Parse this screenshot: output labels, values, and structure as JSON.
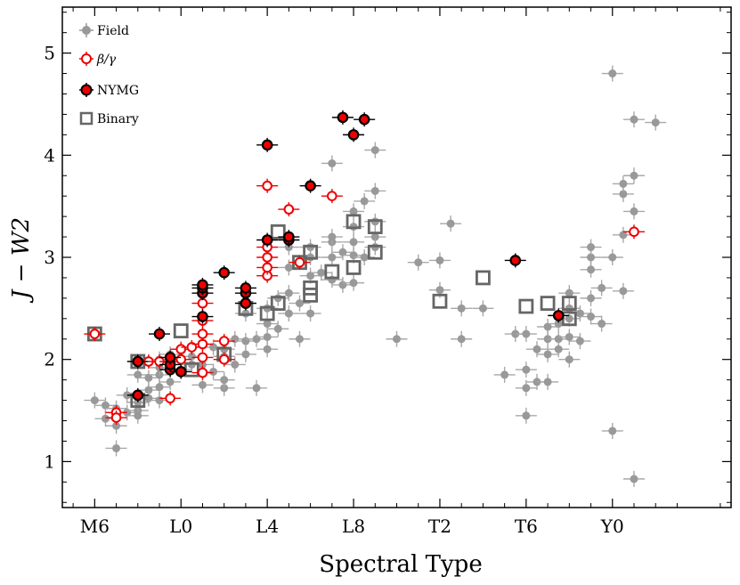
{
  "chart_data": {
    "type": "scatter",
    "title": "",
    "xlabel": "Spectral Type",
    "ylabel": "J − W2",
    "xlim": [
      -1.5,
      29.5
    ],
    "ylim": [
      0.55,
      5.45
    ],
    "x_ticks": [
      {
        "value": 0,
        "label": "M6"
      },
      {
        "value": 4,
        "label": "L0"
      },
      {
        "value": 8,
        "label": "L4"
      },
      {
        "value": 12,
        "label": "L8"
      },
      {
        "value": 16,
        "label": "T2"
      },
      {
        "value": 20,
        "label": "T6"
      },
      {
        "value": 24,
        "label": "Y0"
      }
    ],
    "y_ticks": [
      {
        "value": 1,
        "label": "1"
      },
      {
        "value": 2,
        "label": "2"
      },
      {
        "value": 3,
        "label": "3"
      },
      {
        "value": 4,
        "label": "4"
      },
      {
        "value": 5,
        "label": "5"
      }
    ],
    "legend": [
      {
        "name": "Field",
        "label": "Field",
        "color": "#999999"
      },
      {
        "name": "beta-gamma",
        "label": "β/γ",
        "color": "#ee0000"
      },
      {
        "name": "NYMG",
        "label": "NYMG",
        "color": "#000000"
      },
      {
        "name": "Binary",
        "label": "Binary",
        "color": "#666666"
      }
    ],
    "series": [
      {
        "name": "Field",
        "style": "field",
        "color": "#999999",
        "points": [
          [
            0,
            1.6
          ],
          [
            0.5,
            1.55
          ],
          [
            0.5,
            1.42
          ],
          [
            1,
            1.52
          ],
          [
            1,
            1.13
          ],
          [
            1,
            1.35
          ],
          [
            1.5,
            1.48
          ],
          [
            1.5,
            1.65
          ],
          [
            2,
            1.5
          ],
          [
            2,
            1.58
          ],
          [
            2,
            1.45
          ],
          [
            2,
            1.85
          ],
          [
            2.5,
            1.7
          ],
          [
            2.5,
            1.82
          ],
          [
            2.5,
            1.62
          ],
          [
            3,
            1.6
          ],
          [
            3,
            1.73
          ],
          [
            3,
            1.85
          ],
          [
            3,
            2.0
          ],
          [
            3,
            1.92
          ],
          [
            3.5,
            1.9
          ],
          [
            3.5,
            2.05
          ],
          [
            3.5,
            1.78
          ],
          [
            4,
            2.0
          ],
          [
            4,
            2.1
          ],
          [
            4,
            1.9
          ],
          [
            4.5,
            2.03
          ],
          [
            4.5,
            1.95
          ],
          [
            5,
            1.95
          ],
          [
            5,
            1.75
          ],
          [
            5.5,
            2.12
          ],
          [
            5.5,
            1.88
          ],
          [
            6,
            1.72
          ],
          [
            6,
            1.8
          ],
          [
            6,
            2.03
          ],
          [
            6,
            2.1
          ],
          [
            6.5,
            1.95
          ],
          [
            6.5,
            2.2
          ],
          [
            7,
            2.18
          ],
          [
            7,
            2.05
          ],
          [
            7,
            2.45
          ],
          [
            7,
            2.55
          ],
          [
            7.5,
            2.2
          ],
          [
            7.5,
            1.72
          ],
          [
            8,
            2.22
          ],
          [
            8,
            2.35
          ],
          [
            8,
            2.5
          ],
          [
            8,
            2.1
          ],
          [
            8.5,
            2.3
          ],
          [
            8.5,
            2.6
          ],
          [
            9,
            2.65
          ],
          [
            9,
            2.9
          ],
          [
            9,
            3.1
          ],
          [
            9,
            2.45
          ],
          [
            9.5,
            2.55
          ],
          [
            9.5,
            2.2
          ],
          [
            10,
            2.82
          ],
          [
            10,
            3.1
          ],
          [
            10,
            3.0
          ],
          [
            10,
            2.45
          ],
          [
            10.5,
            2.85
          ],
          [
            11,
            3.15
          ],
          [
            11,
            3.2
          ],
          [
            11,
            3.0
          ],
          [
            11,
            2.78
          ],
          [
            11,
            3.92
          ],
          [
            11.5,
            2.73
          ],
          [
            11.5,
            3.05
          ],
          [
            12,
            2.75
          ],
          [
            12,
            3.02
          ],
          [
            12,
            3.45
          ],
          [
            12,
            3.3
          ],
          [
            12,
            3.15
          ],
          [
            12.5,
            3.55
          ],
          [
            12.5,
            3.0
          ],
          [
            13,
            3.35
          ],
          [
            13,
            3.65
          ],
          [
            13,
            3.2
          ],
          [
            13,
            3.1
          ],
          [
            13,
            4.05
          ],
          [
            15,
            2.95
          ],
          [
            16,
            2.97
          ],
          [
            16,
            2.68
          ],
          [
            16.5,
            3.33
          ],
          [
            17,
            2.5
          ],
          [
            17,
            2.2
          ],
          [
            18,
            2.5
          ],
          [
            19,
            1.85
          ],
          [
            19.5,
            2.25
          ],
          [
            20,
            1.9
          ],
          [
            20,
            1.72
          ],
          [
            20,
            1.45
          ],
          [
            20,
            2.25
          ],
          [
            20.5,
            1.78
          ],
          [
            20.5,
            2.1
          ],
          [
            21,
            2.2
          ],
          [
            21,
            2.32
          ],
          [
            21,
            2.05
          ],
          [
            21,
            1.78
          ],
          [
            21.5,
            2.2
          ],
          [
            21.5,
            2.1
          ],
          [
            21.5,
            2.35
          ],
          [
            22,
            2.22
          ],
          [
            22,
            2.4
          ],
          [
            22,
            2.0
          ],
          [
            22,
            2.5
          ],
          [
            22,
            2.65
          ],
          [
            22.5,
            2.18
          ],
          [
            22.5,
            2.45
          ],
          [
            23,
            2.42
          ],
          [
            23,
            2.6
          ],
          [
            23,
            2.88
          ],
          [
            23,
            3.0
          ],
          [
            23,
            3.1
          ],
          [
            23.5,
            2.35
          ],
          [
            23.5,
            2.7
          ],
          [
            24,
            1.3
          ],
          [
            24,
            3.0
          ],
          [
            24,
            4.8
          ],
          [
            24.5,
            2.67
          ],
          [
            24.5,
            3.22
          ],
          [
            24.5,
            3.62
          ],
          [
            24.5,
            3.72
          ],
          [
            25,
            4.35
          ],
          [
            25,
            3.8
          ],
          [
            25,
            0.83
          ],
          [
            25,
            3.45
          ],
          [
            26,
            4.32
          ],
          [
            14,
            2.2
          ]
        ]
      },
      {
        "name": "Binary",
        "style": "binary",
        "color": "#666666",
        "points": [
          [
            0,
            2.25
          ],
          [
            2,
            1.98
          ],
          [
            2,
            1.6
          ],
          [
            4,
            2.28
          ],
          [
            4.5,
            1.9
          ],
          [
            6,
            2.05
          ],
          [
            7,
            2.5
          ],
          [
            8,
            2.45
          ],
          [
            8.5,
            2.55
          ],
          [
            8.5,
            3.25
          ],
          [
            9.5,
            2.95
          ],
          [
            10,
            3.05
          ],
          [
            10,
            2.63
          ],
          [
            10,
            2.7
          ],
          [
            11,
            2.86
          ],
          [
            12,
            3.35
          ],
          [
            12,
            2.9
          ],
          [
            13,
            3.3
          ],
          [
            13,
            3.05
          ],
          [
            16,
            2.57
          ],
          [
            18,
            2.8
          ],
          [
            20,
            2.52
          ],
          [
            21,
            2.55
          ],
          [
            22,
            2.55
          ],
          [
            22,
            2.4
          ]
        ]
      },
      {
        "name": "beta-gamma",
        "style": "beta",
        "color": "#ee0000",
        "points": [
          [
            0,
            2.25
          ],
          [
            1,
            1.48
          ],
          [
            1,
            1.43
          ],
          [
            2.5,
            1.98
          ],
          [
            3,
            1.98
          ],
          [
            3.5,
            1.62
          ],
          [
            3.5,
            1.98
          ],
          [
            4,
            2.1
          ],
          [
            4,
            2.0
          ],
          [
            4.5,
            2.12
          ],
          [
            5,
            2.02
          ],
          [
            5,
            2.15
          ],
          [
            5,
            2.25
          ],
          [
            5,
            2.38
          ],
          [
            5,
            2.55
          ],
          [
            5,
            1.87
          ],
          [
            6,
            2.18
          ],
          [
            6,
            2.0
          ],
          [
            8,
            2.82
          ],
          [
            8,
            2.9
          ],
          [
            8,
            3.0
          ],
          [
            8,
            3.1
          ],
          [
            8,
            3.7
          ],
          [
            9,
            3.47
          ],
          [
            9.5,
            2.95
          ],
          [
            11,
            3.6
          ],
          [
            25,
            3.25
          ]
        ]
      },
      {
        "name": "NYMG",
        "style": "nymg",
        "color": "#000000",
        "points": [
          [
            2,
            1.65
          ],
          [
            2,
            1.98
          ],
          [
            3,
            2.25
          ],
          [
            3.5,
            1.9
          ],
          [
            3.5,
            1.95
          ],
          [
            3.5,
            2.02
          ],
          [
            4,
            1.88
          ],
          [
            5,
            2.42
          ],
          [
            5,
            2.65
          ],
          [
            5,
            2.7
          ],
          [
            5,
            2.73
          ],
          [
            6,
            2.85
          ],
          [
            7,
            2.65
          ],
          [
            7,
            2.7
          ],
          [
            7,
            2.55
          ],
          [
            8,
            3.17
          ],
          [
            8,
            4.1
          ],
          [
            9,
            3.17
          ],
          [
            9,
            3.2
          ],
          [
            10,
            3.7
          ],
          [
            11.5,
            4.37
          ],
          [
            12,
            4.2
          ],
          [
            12.5,
            4.35
          ],
          [
            19.5,
            2.97
          ],
          [
            21.5,
            2.43
          ]
        ]
      }
    ]
  }
}
